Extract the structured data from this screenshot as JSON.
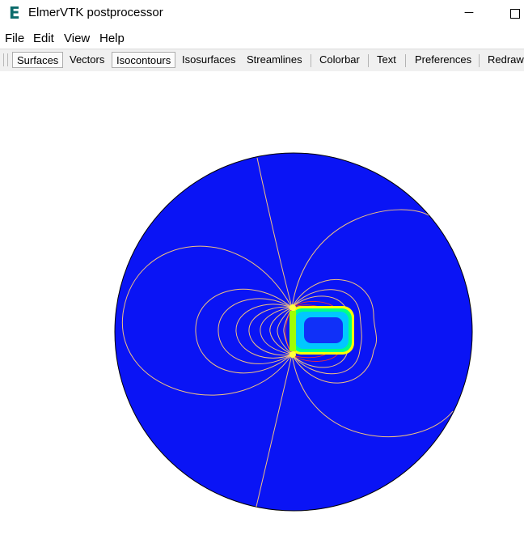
{
  "window": {
    "title": "ElmerVTK postprocessor",
    "app_icon_letter": "E",
    "minimize_glyph": "─"
  },
  "menu": {
    "items": [
      "File",
      "Edit",
      "View",
      "Help"
    ]
  },
  "toolbar": {
    "buttons": [
      "Surfaces",
      "Vectors",
      "Isocontours",
      "Isosurfaces",
      "Streamlines",
      "Colorbar",
      "Text",
      "Preferences",
      "Redraw"
    ],
    "active": [
      "Surfaces",
      "Isocontours"
    ]
  },
  "viewport": {
    "background": "#ffffff",
    "domain_color": "#0a14f5",
    "outline_color": "#000000",
    "isocontour_color": "#f0c080",
    "field_colors": [
      "#0a14f5",
      "#00c8ff",
      "#00ff88",
      "#a0ff00",
      "#ffff00",
      "#ff8800",
      "#ff0000"
    ]
  }
}
